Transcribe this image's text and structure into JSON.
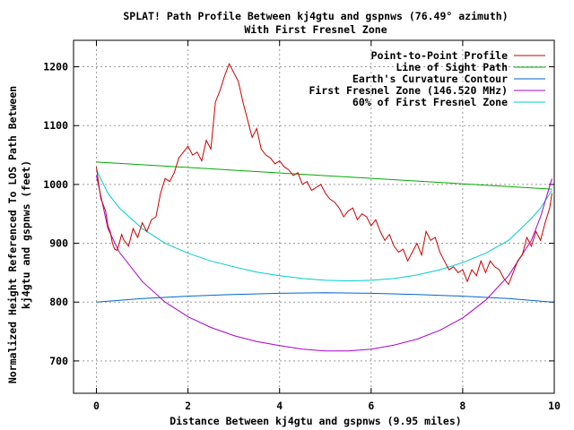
{
  "chart_data": {
    "type": "line",
    "title": "SPLAT! Path Profile Between kj4gtu and gspnws (76.49° azimuth)",
    "subtitle": "With First Fresnel Zone",
    "xlabel": "Distance Between kj4gtu and gspnws (9.95 miles)",
    "ylabel": "Normalized Height Referenced To LOS Path Between",
    "ylabel2": "kj4gtu and gspnws (feet)",
    "xlim": [
      -0.5,
      10
    ],
    "ylim": [
      645,
      1245
    ],
    "x_ticks": [
      "0",
      "2",
      "4",
      "6",
      "8",
      "10"
    ],
    "y_ticks": [
      "700",
      "800",
      "900",
      "1000",
      "1100",
      "1200"
    ],
    "grid": true,
    "legend_position": "top-right",
    "series": [
      {
        "name": "Point-to-Point Profile",
        "color": "#cc0000",
        "x": [
          0.0,
          0.05,
          0.1,
          0.15,
          0.2,
          0.25,
          0.3,
          0.35,
          0.4,
          0.45,
          0.5,
          0.55,
          0.6,
          0.7,
          0.8,
          0.9,
          1.0,
          1.1,
          1.2,
          1.3,
          1.4,
          1.5,
          1.6,
          1.7,
          1.8,
          1.9,
          2.0,
          2.1,
          2.2,
          2.3,
          2.4,
          2.5,
          2.6,
          2.7,
          2.8,
          2.9,
          3.0,
          3.1,
          3.2,
          3.3,
          3.4,
          3.5,
          3.6,
          3.7,
          3.8,
          3.9,
          4.0,
          4.1,
          4.2,
          4.3,
          4.4,
          4.5,
          4.6,
          4.7,
          4.8,
          4.9,
          5.0,
          5.1,
          5.2,
          5.3,
          5.4,
          5.5,
          5.6,
          5.7,
          5.8,
          5.9,
          6.0,
          6.1,
          6.2,
          6.3,
          6.4,
          6.5,
          6.6,
          6.7,
          6.8,
          6.9,
          7.0,
          7.1,
          7.2,
          7.3,
          7.4,
          7.5,
          7.6,
          7.7,
          7.8,
          7.9,
          8.0,
          8.1,
          8.2,
          8.3,
          8.4,
          8.5,
          8.6,
          8.7,
          8.8,
          8.9,
          9.0,
          9.1,
          9.2,
          9.3,
          9.4,
          9.5,
          9.6,
          9.7,
          9.8,
          9.9,
          9.95
        ],
        "y": [
          1030,
          1000,
          975,
          965,
          955,
          930,
          920,
          900,
          890,
          888,
          900,
          915,
          905,
          895,
          925,
          910,
          935,
          920,
          940,
          945,
          985,
          1010,
          1005,
          1020,
          1045,
          1055,
          1065,
          1050,
          1055,
          1040,
          1075,
          1060,
          1140,
          1160,
          1185,
          1205,
          1190,
          1175,
          1140,
          1110,
          1080,
          1095,
          1060,
          1050,
          1045,
          1035,
          1040,
          1030,
          1025,
          1015,
          1020,
          1000,
          1005,
          990,
          995,
          1000,
          985,
          975,
          970,
          960,
          945,
          955,
          960,
          940,
          950,
          945,
          930,
          940,
          920,
          905,
          915,
          895,
          885,
          890,
          870,
          885,
          900,
          880,
          920,
          905,
          910,
          885,
          870,
          855,
          860,
          850,
          855,
          835,
          855,
          845,
          870,
          850,
          870,
          860,
          855,
          840,
          830,
          850,
          870,
          880,
          910,
          895,
          920,
          905,
          935,
          960,
          985
        ]
      },
      {
        "name": "Line of Sight Path",
        "color": "#00aa00",
        "x": [
          0.0,
          9.95
        ],
        "y": [
          1038,
          992
        ]
      },
      {
        "name": "Earth's Curvature Contour",
        "color": "#0066cc",
        "x": [
          0.0,
          1.0,
          2.0,
          3.0,
          4.0,
          5.0,
          6.0,
          7.0,
          8.0,
          9.0,
          9.95
        ],
        "y": [
          800,
          806,
          810,
          813,
          815,
          816,
          815,
          813,
          810,
          806,
          800
        ]
      },
      {
        "name": "First Fresnel Zone (146.520 MHz)",
        "color": "#aa00cc",
        "x": [
          0.0,
          0.25,
          0.5,
          1.0,
          1.5,
          2.0,
          2.5,
          3.0,
          3.5,
          4.0,
          4.5,
          5.0,
          5.5,
          6.0,
          6.5,
          7.0,
          7.5,
          8.0,
          8.5,
          9.0,
          9.5,
          9.7,
          9.95
        ],
        "y": [
          1015,
          925,
          885,
          835,
          800,
          775,
          757,
          743,
          733,
          726,
          720,
          717,
          717,
          720,
          727,
          737,
          752,
          773,
          803,
          845,
          905,
          945,
          1010
        ]
      },
      {
        "name": "60% of First Fresnel Zone",
        "color": "#00cccc",
        "x": [
          0.0,
          0.25,
          0.5,
          1.0,
          1.5,
          2.0,
          2.5,
          3.0,
          3.5,
          4.0,
          4.5,
          5.0,
          5.5,
          6.0,
          6.5,
          7.0,
          7.5,
          8.0,
          8.5,
          9.0,
          9.5,
          9.7,
          9.95
        ],
        "y": [
          1025,
          985,
          960,
          925,
          900,
          883,
          870,
          860,
          851,
          845,
          840,
          837,
          836,
          837,
          840,
          846,
          855,
          867,
          883,
          905,
          942,
          960,
          990
        ]
      }
    ]
  }
}
